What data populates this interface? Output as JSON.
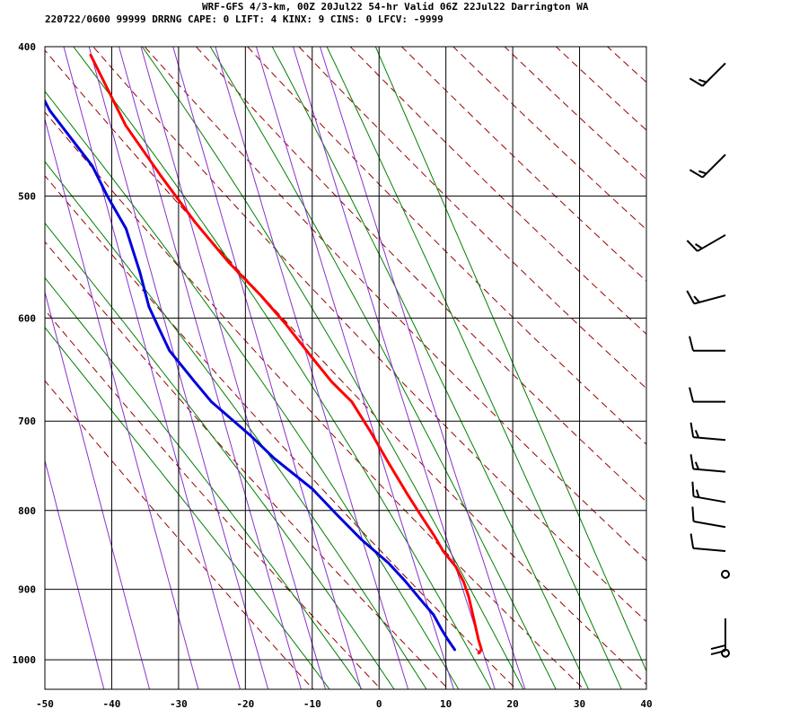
{
  "header": {
    "line1": "WRF-GFS 4/3-km, 00Z 20Jul22 54-hr Valid 06Z 22Jul22 Darrington WA",
    "line2": "220722/0600 99999  DRRNG   CAPE:      0 LIFT:     4 KINX:     9 CINS:      0 LFCV: -9999"
  },
  "colors": {
    "temperature": "#ff0000",
    "dewpoint": "#0000dd",
    "dry_adiabat": "#990000",
    "moist_adiabat": "#008000",
    "mixing_ratio": "#8833cc",
    "grid": "#000000",
    "wind_barb": "#000000"
  },
  "chart_data": {
    "type": "line",
    "x_axis": {
      "min": -50,
      "max": 40,
      "ticks": [
        -50,
        -40,
        -30,
        -20,
        -10,
        0,
        10,
        20,
        30,
        40
      ]
    },
    "y_axis": {
      "min": 400,
      "max": 1045,
      "ticks": [
        400,
        500,
        600,
        700,
        800,
        900,
        1000
      ],
      "scale": "log"
    },
    "series": [
      {
        "role": "temperature",
        "points": [
          [
            -27.5,
            405
          ],
          [
            -24,
            450
          ],
          [
            -20,
            485
          ],
          [
            -16,
            520
          ],
          [
            -12,
            552
          ],
          [
            -8,
            580
          ],
          [
            -5,
            605
          ],
          [
            -2,
            635
          ],
          [
            0.5,
            660
          ],
          [
            3,
            680
          ],
          [
            5,
            710
          ],
          [
            7,
            745
          ],
          [
            9,
            780
          ],
          [
            10.5,
            805
          ],
          [
            12,
            830
          ],
          [
            13,
            850
          ],
          [
            14.5,
            870
          ],
          [
            15.3,
            890
          ],
          [
            15.7,
            910
          ],
          [
            15.9,
            940
          ],
          [
            16.1,
            970
          ],
          [
            16.3,
            985
          ],
          [
            15.8,
            990
          ]
        ]
      },
      {
        "role": "dewpoint",
        "points": [
          [
            -38,
            405
          ],
          [
            -35,
            440
          ],
          [
            -30,
            478
          ],
          [
            -28.5,
            500
          ],
          [
            -26.5,
            525
          ],
          [
            -25.5,
            560
          ],
          [
            -25,
            590
          ],
          [
            -24,
            610
          ],
          [
            -23,
            630
          ],
          [
            -20,
            660
          ],
          [
            -18,
            680
          ],
          [
            -13,
            715
          ],
          [
            -10,
            740
          ],
          [
            -5,
            775
          ],
          [
            -2,
            805
          ],
          [
            1,
            835
          ],
          [
            4.5,
            865
          ],
          [
            6.5,
            888
          ],
          [
            8.5,
            915
          ],
          [
            10,
            935
          ],
          [
            10.8,
            955
          ],
          [
            11.5,
            970
          ],
          [
            12.3,
            985
          ]
        ]
      }
    ],
    "dry_adiabats_theta_k": [
      260,
      270,
      280,
      290,
      300,
      310,
      320,
      330,
      340,
      350,
      360,
      370,
      380,
      390,
      400,
      410,
      420,
      430
    ],
    "moist_adiabats_theta_w_c": [
      -10,
      -5,
      0,
      5,
      10,
      15,
      20,
      25,
      30,
      35,
      40
    ],
    "mixing_ratio_lines_gkg": [
      0.1,
      0.2,
      0.4,
      0.7,
      1,
      1.5,
      2,
      3,
      5,
      8,
      12,
      16
    ],
    "wind_profile": [
      {
        "p": 410,
        "dir": 225,
        "kt": 15
      },
      {
        "p": 470,
        "dir": 225,
        "kt": 15
      },
      {
        "p": 530,
        "dir": 240,
        "kt": 15
      },
      {
        "p": 580,
        "dir": 255,
        "kt": 15
      },
      {
        "p": 630,
        "dir": 270,
        "kt": 10
      },
      {
        "p": 680,
        "dir": 270,
        "kt": 10
      },
      {
        "p": 720,
        "dir": 275,
        "kt": 15
      },
      {
        "p": 755,
        "dir": 275,
        "kt": 15
      },
      {
        "p": 790,
        "dir": 280,
        "kt": 15
      },
      {
        "p": 820,
        "dir": 280,
        "kt": 10
      },
      {
        "p": 850,
        "dir": 275,
        "kt": 10
      },
      {
        "p": 880,
        "dir": 0,
        "kt": 0
      },
      {
        "p": 940,
        "dir": 180,
        "kt": 20
      },
      {
        "p": 990,
        "dir": 0,
        "kt": 0
      }
    ]
  }
}
